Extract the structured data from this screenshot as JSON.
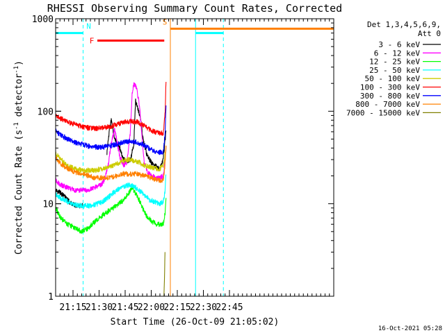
{
  "chart_data": {
    "type": "line",
    "title": "RHESSI Observing Summary Count Rates, Corrected",
    "xlabel": "Start Time (26-Oct-09 21:05:02)",
    "ylabel_main": "Corrected Count Rate (s",
    "ylabel_sup1": "-1",
    "ylabel_mid": " detector",
    "ylabel_sup2": "-1",
    "ylabel_end": ")",
    "yscale": "log",
    "ylim": [
      1,
      1000
    ],
    "xlim_min": [
      5,
      165
    ],
    "yticks": [
      {
        "v": 1,
        "label": "1"
      },
      {
        "v": 10,
        "label": "10"
      },
      {
        "v": 100,
        "label": "100"
      },
      {
        "v": 1000,
        "label": "1000"
      }
    ],
    "xticks": [
      {
        "min": 15,
        "label": "21:15"
      },
      {
        "min": 30,
        "label": "21:30"
      },
      {
        "min": 45,
        "label": "21:45"
      },
      {
        "min": 60,
        "label": "22:00"
      },
      {
        "min": 75,
        "label": "22:15"
      },
      {
        "min": 90,
        "label": "22:30"
      },
      {
        "min": 105,
        "label": "22:45"
      }
    ],
    "legend_title_1": "Det 1,3,4,5,6,9,",
    "legend_title_2": "Att 0",
    "legend": [
      {
        "label": "3 - 6 keV",
        "color": "#000000"
      },
      {
        "label": "6 - 12 keV",
        "color": "#ff00ff"
      },
      {
        "label": "12 - 25 keV",
        "color": "#00ff00"
      },
      {
        "label": "25 - 50 keV",
        "color": "#00ffff"
      },
      {
        "label": "50 - 100 keV",
        "color": "#cccc00"
      },
      {
        "label": "100 - 300 keV",
        "color": "#ff0000"
      },
      {
        "label": "300 - 800 keV",
        "color": "#0000ff"
      },
      {
        "label": "800 - 7000 keV",
        "color": "#ff8000"
      },
      {
        "label": "7000 - 15000 keV",
        "color": "#808000"
      }
    ],
    "flags": {
      "N": {
        "label": "N",
        "start_min": 5,
        "end_min": 20.8,
        "level": 700,
        "color": "#00ffff"
      },
      "F": {
        "label": "F",
        "start_min": 29,
        "end_min": 67.5,
        "level": 580,
        "color": "#ff0000"
      },
      "S": {
        "label": "S",
        "start_min": 71,
        "end_min": 165,
        "level": 780,
        "color": "#ff8000"
      },
      "night2": {
        "start_min": 85.5,
        "end_min": 101.5,
        "level": 700,
        "color": "#00ffff"
      }
    },
    "verticals": [
      {
        "min": 5,
        "color": "#00ffff",
        "style": "solid"
      },
      {
        "min": 20.8,
        "color": "#00ffff",
        "style": "dashed"
      },
      {
        "min": 71,
        "color": "#ff8000",
        "style": "solid"
      },
      {
        "min": 85.5,
        "color": "#00ffff",
        "style": "solid"
      },
      {
        "min": 101.5,
        "color": "#00ffff",
        "style": "dashed"
      }
    ],
    "series": [
      {
        "name": "3 - 6 keV",
        "color": "#000000",
        "points": [
          [
            5,
            14
          ],
          [
            8,
            13
          ],
          [
            11,
            11.5
          ],
          [
            14,
            10
          ],
          [
            17,
            9.5
          ],
          [
            20.5,
            9.5
          ],
          [
            21,
            null
          ],
          [
            34,
            null
          ],
          [
            34.5,
            35
          ],
          [
            36,
            65
          ],
          [
            37,
            80
          ],
          [
            38.5,
            55
          ],
          [
            40,
            45
          ],
          [
            42,
            40
          ],
          [
            44,
            30
          ],
          [
            46,
            29
          ],
          [
            48,
            30
          ],
          [
            50,
            45
          ],
          [
            51,
            130
          ],
          [
            52,
            110
          ],
          [
            53,
            95
          ],
          [
            54,
            80
          ],
          [
            55,
            55
          ],
          [
            56,
            42
          ],
          [
            58,
            32
          ],
          [
            60,
            28
          ],
          [
            63,
            25
          ],
          [
            65,
            24
          ],
          [
            66.5,
            28
          ],
          [
            67.5,
            40
          ],
          [
            68.5,
            60
          ]
        ]
      },
      {
        "name": "6 - 12 keV",
        "color": "#ff00ff",
        "points": [
          [
            5,
            18
          ],
          [
            8,
            16
          ],
          [
            12,
            15
          ],
          [
            16,
            14
          ],
          [
            20,
            14
          ],
          [
            24,
            14
          ],
          [
            28,
            15
          ],
          [
            31,
            16
          ],
          [
            33,
            18
          ],
          [
            35,
            25
          ],
          [
            37,
            45
          ],
          [
            39,
            65
          ],
          [
            40,
            50
          ],
          [
            42,
            32
          ],
          [
            44,
            26
          ],
          [
            46,
            28
          ],
          [
            48,
            60
          ],
          [
            49,
            150
          ],
          [
            50,
            200
          ],
          [
            51,
            190
          ],
          [
            52,
            160
          ],
          [
            53,
            120
          ],
          [
            54,
            80
          ],
          [
            55,
            45
          ],
          [
            56,
            28
          ],
          [
            58,
            22
          ],
          [
            60,
            20
          ],
          [
            63,
            19
          ],
          [
            65,
            19
          ],
          [
            67,
            20
          ],
          [
            68.5,
            40
          ]
        ]
      },
      {
        "name": "12 - 25 keV",
        "color": "#00ff00",
        "points": [
          [
            5,
            9
          ],
          [
            8,
            7
          ],
          [
            12,
            6
          ],
          [
            16,
            5.5
          ],
          [
            20,
            5
          ],
          [
            24,
            5.5
          ],
          [
            28,
            6.5
          ],
          [
            32,
            7.5
          ],
          [
            36,
            8.5
          ],
          [
            40,
            9.5
          ],
          [
            44,
            11
          ],
          [
            47,
            13
          ],
          [
            49,
            15
          ],
          [
            51,
            13
          ],
          [
            53,
            11
          ],
          [
            55,
            9
          ],
          [
            57,
            7.5
          ],
          [
            60,
            6.5
          ],
          [
            63,
            6
          ],
          [
            65,
            6
          ],
          [
            67,
            6
          ],
          [
            68,
            8
          ],
          [
            68.5,
            12
          ]
        ]
      },
      {
        "name": "25 - 50 keV",
        "color": "#00ffff",
        "points": [
          [
            5,
            12.5
          ],
          [
            8,
            11.5
          ],
          [
            12,
            10.5
          ],
          [
            16,
            9.8
          ],
          [
            20,
            9.5
          ],
          [
            24,
            9.5
          ],
          [
            28,
            9.8
          ],
          [
            32,
            10.5
          ],
          [
            36,
            12
          ],
          [
            40,
            14
          ],
          [
            44,
            15.5
          ],
          [
            47,
            16
          ],
          [
            50,
            15.5
          ],
          [
            53,
            14
          ],
          [
            56,
            12.5
          ],
          [
            59,
            11
          ],
          [
            62,
            10.5
          ],
          [
            65,
            10
          ],
          [
            67,
            10.5
          ],
          [
            68,
            14
          ],
          [
            68.5,
            22
          ]
        ]
      },
      {
        "name": "50 - 100 keV",
        "color": "#cccc00",
        "points": [
          [
            5,
            35
          ],
          [
            8,
            30
          ],
          [
            12,
            26
          ],
          [
            16,
            24
          ],
          [
            20,
            23
          ],
          [
            24,
            23
          ],
          [
            28,
            23
          ],
          [
            32,
            24
          ],
          [
            36,
            25
          ],
          [
            40,
            27
          ],
          [
            44,
            29
          ],
          [
            47,
            30
          ],
          [
            50,
            29
          ],
          [
            53,
            28
          ],
          [
            56,
            26
          ],
          [
            59,
            25
          ],
          [
            62,
            24
          ],
          [
            65,
            24
          ],
          [
            67,
            26
          ],
          [
            68.5,
            40
          ]
        ]
      },
      {
        "name": "100 - 300 keV",
        "color": "#ff0000",
        "points": [
          [
            5,
            90
          ],
          [
            8,
            83
          ],
          [
            12,
            77
          ],
          [
            16,
            72
          ],
          [
            20,
            68
          ],
          [
            24,
            66
          ],
          [
            28,
            65
          ],
          [
            32,
            66
          ],
          [
            36,
            68
          ],
          [
            40,
            72
          ],
          [
            44,
            76
          ],
          [
            48,
            78
          ],
          [
            52,
            76
          ],
          [
            56,
            70
          ],
          [
            60,
            62
          ],
          [
            64,
            58
          ],
          [
            67,
            58
          ],
          [
            68,
            100
          ],
          [
            68.5,
            200
          ]
        ]
      },
      {
        "name": "300 - 800 keV",
        "color": "#0000ff",
        "points": [
          [
            5,
            62
          ],
          [
            8,
            55
          ],
          [
            12,
            50
          ],
          [
            16,
            46
          ],
          [
            20,
            44
          ],
          [
            24,
            42
          ],
          [
            28,
            41
          ],
          [
            32,
            41
          ],
          [
            36,
            42
          ],
          [
            40,
            44
          ],
          [
            44,
            46
          ],
          [
            48,
            47
          ],
          [
            52,
            46
          ],
          [
            56,
            43
          ],
          [
            60,
            38
          ],
          [
            64,
            36
          ],
          [
            67,
            36
          ],
          [
            68,
            60
          ],
          [
            68.5,
            110
          ]
        ]
      },
      {
        "name": "800 - 7000 keV",
        "color": "#ff8000",
        "points": [
          [
            5,
            32
          ],
          [
            8,
            27
          ],
          [
            12,
            24
          ],
          [
            16,
            22
          ],
          [
            20,
            21
          ],
          [
            24,
            20
          ],
          [
            28,
            19
          ],
          [
            32,
            19
          ],
          [
            36,
            19
          ],
          [
            40,
            20
          ],
          [
            44,
            21
          ],
          [
            48,
            21
          ],
          [
            52,
            21
          ],
          [
            56,
            20
          ],
          [
            60,
            19
          ],
          [
            64,
            18
          ],
          [
            67,
            18
          ],
          [
            68,
            28
          ],
          [
            68.5,
            45
          ]
        ]
      },
      {
        "name": "7000 - 15000 keV",
        "color": "#808000",
        "points": [
          [
            67.3,
            1
          ],
          [
            67.6,
            1.5
          ],
          [
            67.9,
            3
          ]
        ]
      }
    ]
  },
  "footer_timestamp": "16-Oct-2021 05:28"
}
